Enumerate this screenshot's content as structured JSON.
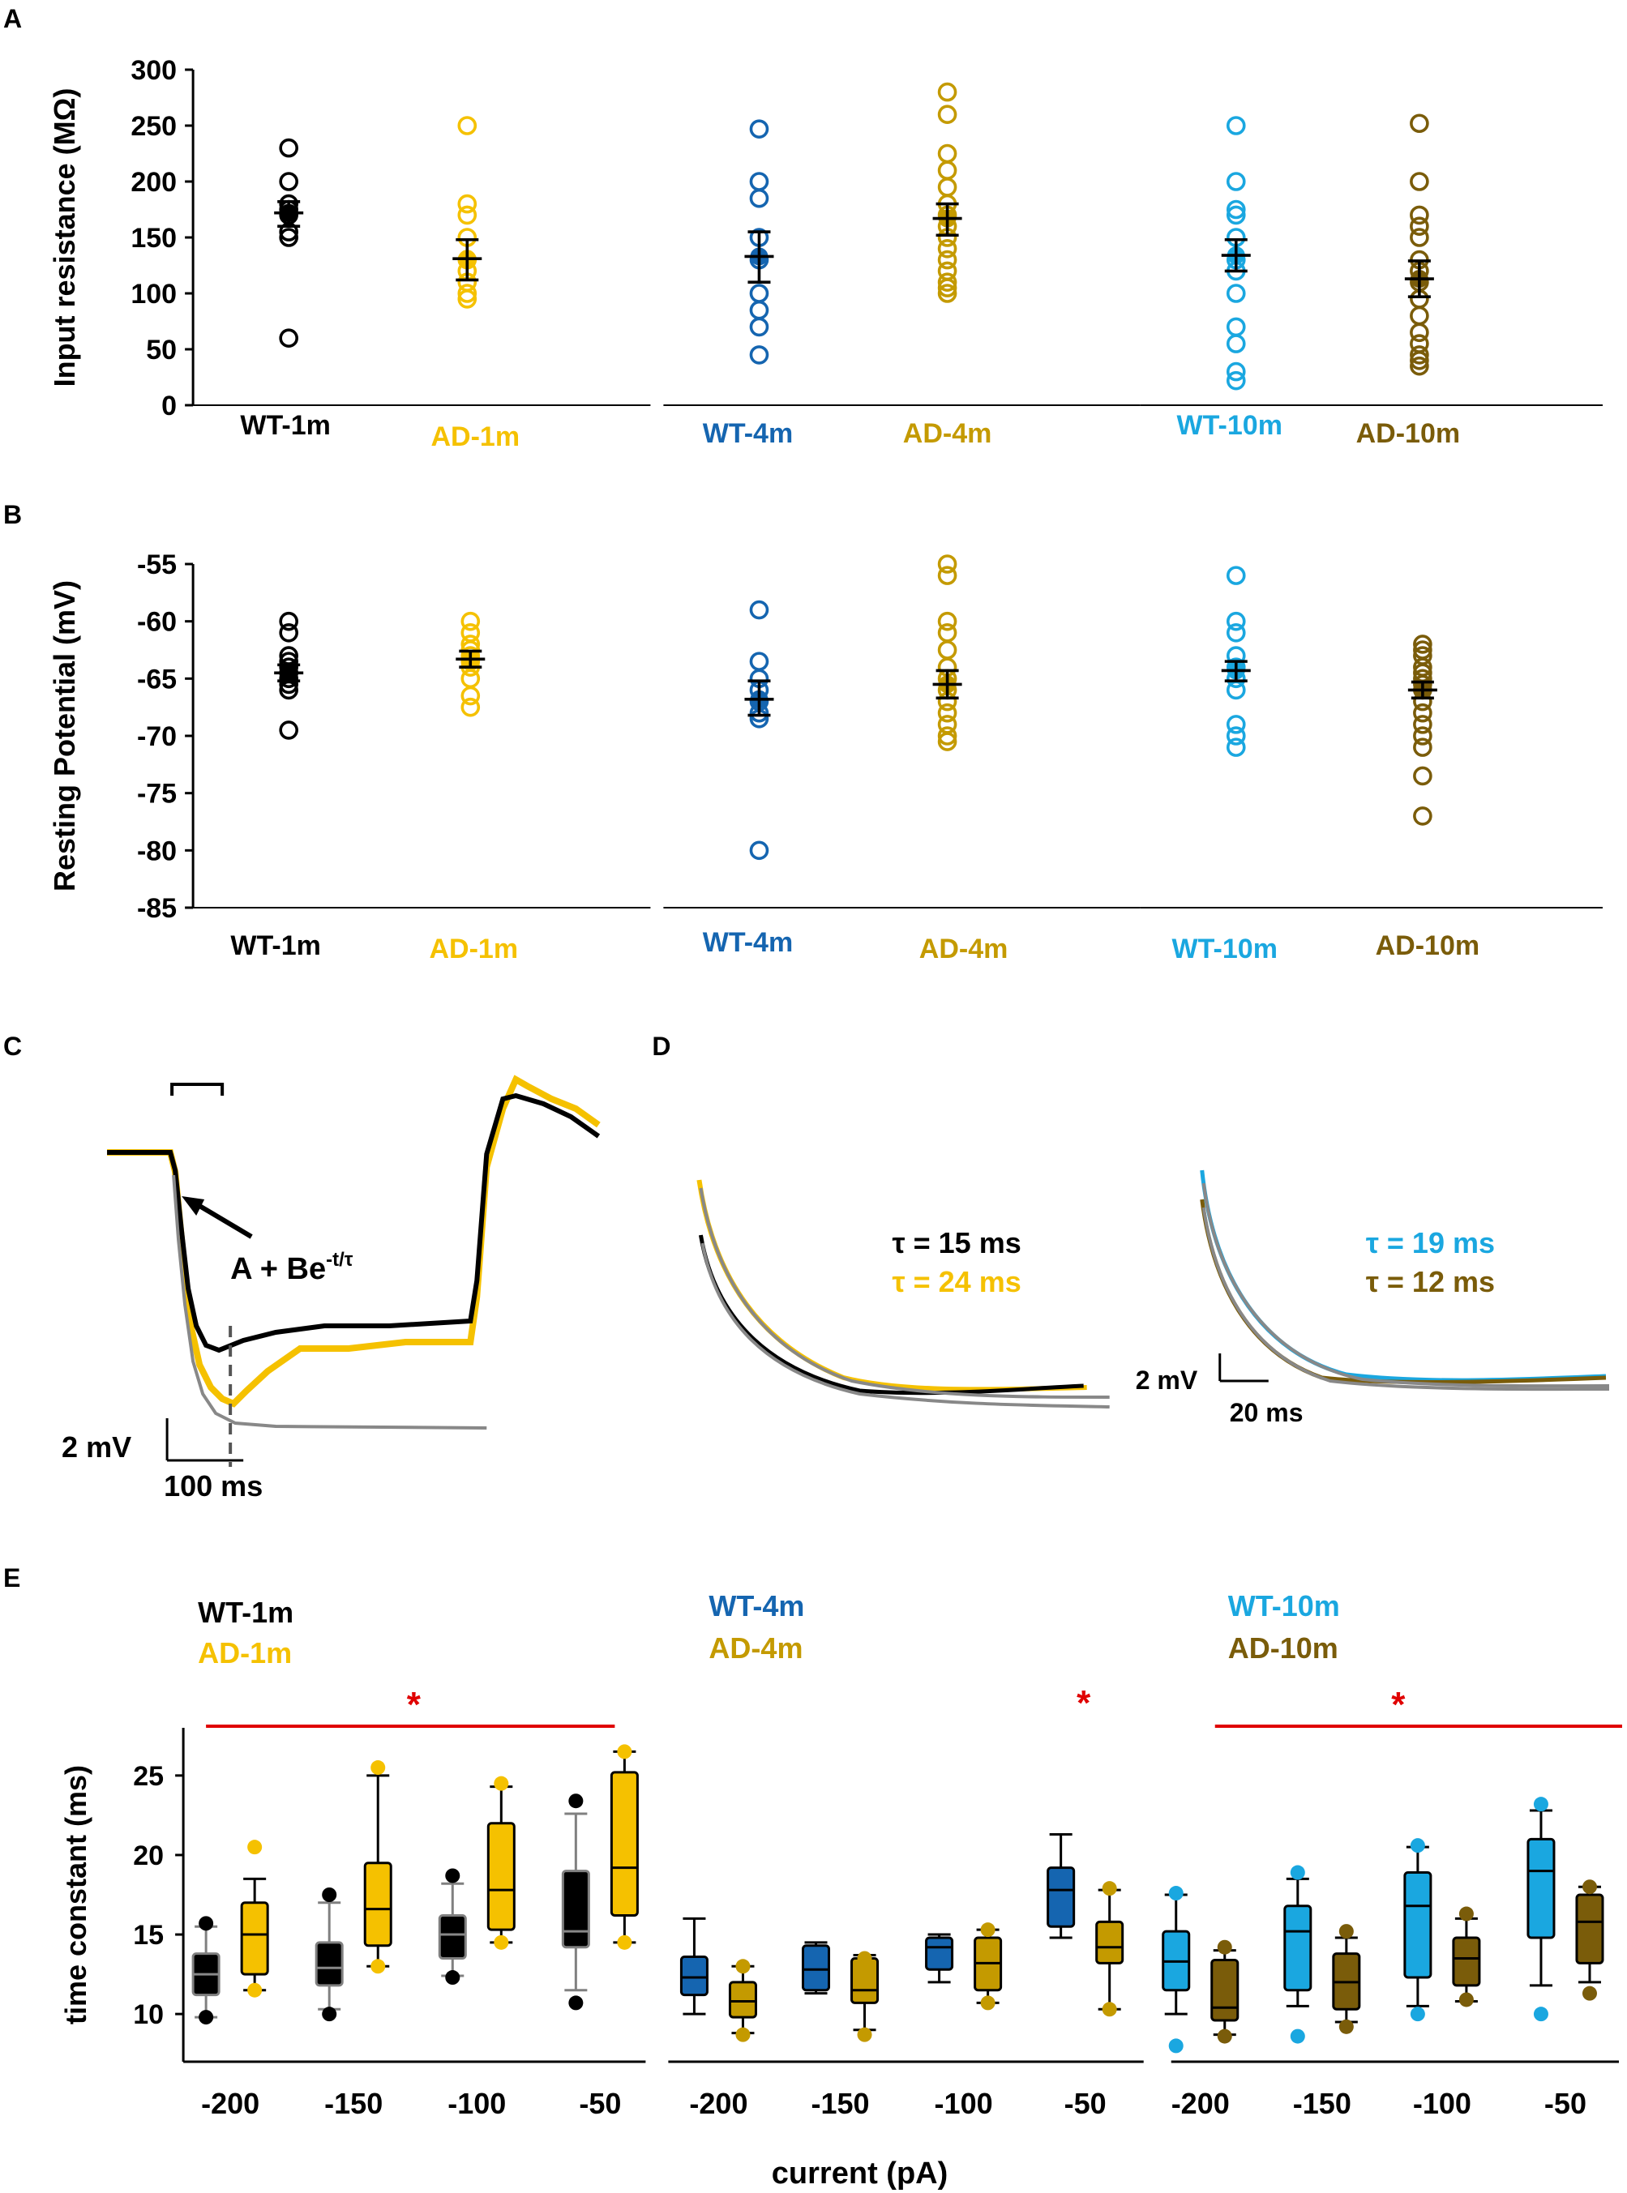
{
  "colors": {
    "wt1": "#000000",
    "ad1": "#f5c100",
    "wt4": "#1565b0",
    "ad4": "#c49a00",
    "wt10": "#1aa7e0",
    "ad10": "#7a5c0a",
    "grey": "#808080",
    "red": "#e00000"
  },
  "panels": {
    "A": "A",
    "B": "B",
    "C": "C",
    "D": "D",
    "E": "E"
  },
  "panel_c": {
    "fit_text": "A + Be",
    "fit_sup": "-t/τ",
    "scale_mv": "2 mV",
    "scale_ms": "100 ms"
  },
  "panel_d": {
    "tau_wt1": "τ = 15 ms",
    "tau_ad1": "τ = 24 ms",
    "tau_wt10": "τ = 19 ms",
    "tau_ad10": "τ = 12 ms",
    "scale_mv": "2 mV",
    "scale_ms": "20 ms"
  },
  "chart_data": [
    {
      "id": "A",
      "type": "scatter",
      "ylabel": "Input resistance (MΩ)",
      "ylim": [
        0,
        300
      ],
      "yticks": [
        "0",
        "50",
        "100",
        "150",
        "200",
        "250",
        "300"
      ],
      "series": [
        {
          "name": "WT-1m",
          "color": "wt1",
          "values": [
            230,
            200,
            180,
            175,
            170,
            155,
            150,
            60
          ],
          "mean": 172,
          "sem_hi": 182,
          "sem_lo": 160
        },
        {
          "name": "AD-1m",
          "color": "ad1",
          "values": [
            250,
            180,
            170,
            150,
            130,
            120,
            110,
            100,
            95
          ],
          "mean": 131,
          "sem_hi": 148,
          "sem_lo": 112
        },
        {
          "name": "WT-4m",
          "color": "wt4",
          "values": [
            247,
            200,
            185,
            150,
            130,
            100,
            85,
            70,
            45
          ],
          "mean": 133,
          "sem_hi": 155,
          "sem_lo": 110
        },
        {
          "name": "AD-4m",
          "color": "ad4",
          "values": [
            280,
            260,
            225,
            210,
            195,
            180,
            170,
            160,
            150,
            140,
            130,
            120,
            110,
            105,
            100
          ],
          "mean": 167,
          "sem_hi": 180,
          "sem_lo": 152
        },
        {
          "name": "WT-10m",
          "color": "wt10",
          "values": [
            250,
            200,
            175,
            170,
            150,
            130,
            120,
            100,
            70,
            55,
            30,
            22
          ],
          "mean": 134,
          "sem_hi": 148,
          "sem_lo": 120
        },
        {
          "name": "AD-10m",
          "color": "ad10",
          "values": [
            252,
            200,
            170,
            160,
            150,
            130,
            120,
            110,
            95,
            80,
            65,
            55,
            45,
            40,
            35
          ],
          "mean": 113,
          "sem_hi": 129,
          "sem_lo": 97
        }
      ]
    },
    {
      "id": "B",
      "type": "scatter",
      "ylabel": "Resting Potential (mV)",
      "ylim": [
        -85,
        -55
      ],
      "yticks": [
        "-85",
        "-80",
        "-75",
        "-70",
        "-65",
        "-60",
        "-55"
      ],
      "series": [
        {
          "name": "WT-1m",
          "color": "wt1",
          "values": [
            -60,
            -61,
            -63,
            -63.5,
            -64,
            -64.5,
            -65,
            -65.5,
            -66,
            -69.5
          ],
          "mean": -64.5,
          "sem_hi": -63.8,
          "sem_lo": -65.2
        },
        {
          "name": "AD-1m",
          "color": "ad1",
          "values": [
            -60,
            -61,
            -62,
            -62.5,
            -63,
            -63.5,
            -64,
            -65,
            -66.5,
            -67.5
          ],
          "mean": -63.3,
          "sem_hi": -62.6,
          "sem_lo": -64
        },
        {
          "name": "WT-4m",
          "color": "wt4",
          "values": [
            -59,
            -63.5,
            -65,
            -66,
            -67,
            -68,
            -68.5,
            -80
          ],
          "mean": -66.8,
          "sem_hi": -65.2,
          "sem_lo": -68.2
        },
        {
          "name": "AD-4m",
          "color": "ad4",
          "values": [
            -55,
            -56,
            -60,
            -61,
            -62.5,
            -64,
            -65,
            -66,
            -67,
            -68,
            -69,
            -70,
            -70.5
          ],
          "mean": -65.5,
          "sem_hi": -64.3,
          "sem_lo": -66.7
        },
        {
          "name": "WT-10m",
          "color": "wt10",
          "values": [
            -56,
            -60,
            -61,
            -63,
            -64,
            -65,
            -66,
            -69,
            -70,
            -71
          ],
          "mean": -64.3,
          "sem_hi": -63.5,
          "sem_lo": -65.2
        },
        {
          "name": "AD-10m",
          "color": "ad10",
          "values": [
            -62,
            -62.5,
            -63,
            -64,
            -64.5,
            -65,
            -65.5,
            -66,
            -67,
            -68,
            -69,
            -70,
            -71,
            -73.5,
            -77
          ],
          "mean": -66,
          "sem_hi": -65.3,
          "sem_lo": -66.7
        }
      ]
    },
    {
      "id": "E",
      "type": "box",
      "ylabel": "time constant (ms)",
      "xlabel": "current (pA)",
      "ylim": [
        7,
        28
      ],
      "yticks": [
        "10",
        "15",
        "20",
        "25"
      ],
      "xticks": [
        "-200",
        "-150",
        "-100",
        "-50"
      ],
      "groups": [
        {
          "wt": "WT-1m",
          "ad": "AD-1m",
          "wtc": "wt1",
          "adc": "ad1",
          "sig": "*",
          "wt_boxes": [
            [
              9.8,
              11.2,
              12.5,
              13.8,
              15.5
            ],
            [
              10.3,
              11.8,
              12.9,
              14.5,
              17
            ],
            [
              12.4,
              13.5,
              15,
              16.2,
              18.2
            ],
            [
              11.5,
              14.2,
              15.2,
              19,
              22.6
            ]
          ],
          "wt_out": [
            [
              9.8,
              15.7
            ],
            [
              10,
              17.5
            ],
            [
              12.3,
              18.7
            ],
            [
              10.7,
              23.4
            ]
          ],
          "ad_boxes": [
            [
              11.5,
              12.5,
              15,
              17,
              18.5
            ],
            [
              13,
              14.3,
              16.6,
              19.5,
              25
            ],
            [
              14.5,
              15.3,
              17.8,
              22,
              24.3
            ],
            [
              14.5,
              16.2,
              19.2,
              25.2,
              26.5
            ]
          ],
          "ad_out": [
            [
              11.5,
              20.5
            ],
            [
              13,
              25.5
            ],
            [
              14.5,
              24.5
            ],
            [
              14.5,
              26.5
            ]
          ]
        },
        {
          "wt": "WT-4m",
          "ad": "AD-4m",
          "wtc": "wt4",
          "adc": "ad4",
          "sig": "*",
          "wt_boxes": [
            [
              10,
              11.2,
              12.3,
              13.6,
              16
            ],
            [
              11.3,
              11.5,
              12.8,
              14.3,
              14.5
            ],
            [
              12,
              12.8,
              14.2,
              14.8,
              15
            ],
            [
              14.8,
              15.5,
              17.8,
              19.2,
              21.3
            ]
          ],
          "wt_out": [],
          "ad_boxes": [
            [
              8.8,
              9.8,
              10.8,
              12,
              13
            ],
            [
              9,
              10.7,
              11.5,
              13.5,
              13.7
            ],
            [
              10.7,
              11.5,
              13.2,
              14.8,
              15.3
            ],
            [
              10.3,
              13.2,
              14.2,
              15.8,
              17.8
            ]
          ],
          "ad_out": [
            [
              8.7,
              13
            ],
            [
              8.7,
              13.5
            ],
            [
              10.7,
              15.3
            ],
            [
              10.3,
              17.9
            ]
          ]
        },
        {
          "wt": "WT-10m",
          "ad": "AD-10m",
          "wtc": "wt10",
          "adc": "ad10",
          "sig": "*",
          "wt_boxes": [
            [
              10,
              11.5,
              13.3,
              15.2,
              17.5
            ],
            [
              10.5,
              11.5,
              15.2,
              16.8,
              18.5
            ],
            [
              10.5,
              12.3,
              16.8,
              18.9,
              20.5
            ],
            [
              11.8,
              14.8,
              19,
              21,
              22.8
            ]
          ],
          "wt_out": [
            [
              8,
              17.6
            ],
            [
              8.6,
              18.9
            ],
            [
              10,
              20.6
            ],
            [
              10,
              23.2
            ]
          ],
          "ad_boxes": [
            [
              8.7,
              9.6,
              10.4,
              13.4,
              14
            ],
            [
              9.5,
              10.3,
              12,
              13.8,
              14.8
            ],
            [
              10.8,
              11.8,
              13.5,
              14.8,
              16
            ],
            [
              12,
              13.2,
              15.8,
              17.5,
              18
            ]
          ],
          "ad_out": [
            [
              8.6,
              14.2
            ],
            [
              9.2,
              15.2
            ],
            [
              10.9,
              16.3
            ],
            [
              11.3,
              18
            ]
          ]
        }
      ]
    }
  ]
}
